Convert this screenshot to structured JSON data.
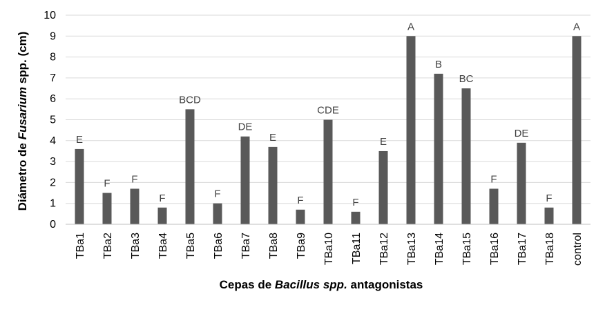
{
  "chart_data": {
    "type": "bar",
    "title": "",
    "ylabel": {
      "prefix": "Diámetro de ",
      "italic": "Fusarium",
      "suffix": " spp. (cm)"
    },
    "xlabel": {
      "prefix": "Cepas de ",
      "italic": "Bacillus spp.",
      "suffix": " antagonistas"
    },
    "ylim": [
      0,
      10
    ],
    "yticks": [
      0,
      1,
      2,
      3,
      4,
      5,
      6,
      7,
      8,
      9,
      10
    ],
    "grid": true,
    "legend": "none",
    "bar_color": "#595959",
    "categories": [
      "TBa1",
      "TBa2",
      "TBa3",
      "TBa4",
      "TBa5",
      "TBa6",
      "TBa7",
      "TBa8",
      "TBa9",
      "TBa10",
      "TBa11",
      "TBa12",
      "TBa13",
      "TBa14",
      "TBa15",
      "TBa16",
      "TBa17",
      "TBa18",
      "control"
    ],
    "values": [
      3.6,
      1.5,
      1.7,
      0.8,
      5.5,
      1.0,
      4.2,
      3.7,
      0.7,
      5.0,
      0.6,
      3.5,
      9.0,
      7.2,
      6.5,
      1.7,
      3.9,
      0.8,
      9.0
    ],
    "annotations": [
      "E",
      "F",
      "F",
      "F",
      "BCD",
      "F",
      "DE",
      "E",
      "F",
      "CDE",
      "F",
      "E",
      "A",
      "B",
      "BC",
      "F",
      "DE",
      "F",
      "A"
    ]
  }
}
